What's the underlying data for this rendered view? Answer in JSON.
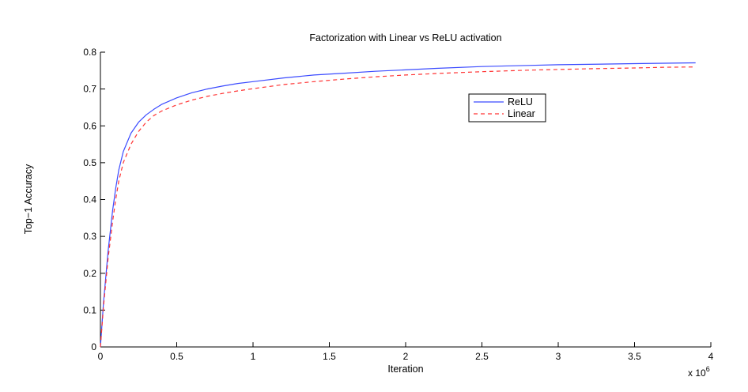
{
  "chart_data": {
    "type": "line",
    "title": "Factorization with Linear vs ReLU activation",
    "xlabel": "Iteration",
    "ylabel": "Top−1 Accuracy",
    "x_multiplier_label": "x 10",
    "x_multiplier_exponent": "6",
    "xlim": [
      0,
      4
    ],
    "ylim": [
      0,
      0.8
    ],
    "x_ticks": [
      0,
      0.5,
      1,
      1.5,
      2,
      2.5,
      3,
      3.5,
      4
    ],
    "x_tick_labels": [
      "0",
      "0.5",
      "1",
      "1.5",
      "2",
      "2.5",
      "3",
      "3.5",
      "4"
    ],
    "y_ticks": [
      0,
      0.1,
      0.2,
      0.3,
      0.4,
      0.5,
      0.6,
      0.7,
      0.8
    ],
    "y_tick_labels": [
      "0",
      "0.1",
      "0.2",
      "0.3",
      "0.4",
      "0.5",
      "0.6",
      "0.7",
      "0.8"
    ],
    "grid": false,
    "legend_position": "upper-right-inside",
    "series": [
      {
        "name": "ReLU",
        "color": "#3b4bff",
        "style": "solid",
        "x": [
          0,
          0.02,
          0.05,
          0.08,
          0.1,
          0.12,
          0.15,
          0.2,
          0.25,
          0.3,
          0.35,
          0.4,
          0.5,
          0.6,
          0.7,
          0.8,
          0.9,
          1.0,
          1.2,
          1.4,
          1.6,
          1.8,
          2.0,
          2.2,
          2.5,
          2.8,
          3.0,
          3.2,
          3.5,
          3.7,
          3.9
        ],
        "y": [
          0,
          0.12,
          0.26,
          0.37,
          0.43,
          0.48,
          0.53,
          0.58,
          0.61,
          0.63,
          0.645,
          0.658,
          0.676,
          0.69,
          0.7,
          0.708,
          0.715,
          0.72,
          0.73,
          0.738,
          0.743,
          0.748,
          0.752,
          0.756,
          0.761,
          0.764,
          0.766,
          0.767,
          0.769,
          0.77,
          0.771
        ]
      },
      {
        "name": "Linear",
        "color": "#ff3333",
        "style": "dashed",
        "x": [
          0,
          0.02,
          0.05,
          0.08,
          0.1,
          0.12,
          0.15,
          0.2,
          0.25,
          0.3,
          0.35,
          0.4,
          0.5,
          0.6,
          0.7,
          0.8,
          0.9,
          1.0,
          1.2,
          1.4,
          1.6,
          1.8,
          2.0,
          2.2,
          2.5,
          2.8,
          3.0,
          3.2,
          3.5,
          3.7,
          3.9
        ],
        "y": [
          0,
          0.11,
          0.24,
          0.34,
          0.4,
          0.45,
          0.5,
          0.55,
          0.585,
          0.61,
          0.628,
          0.64,
          0.657,
          0.67,
          0.68,
          0.688,
          0.695,
          0.701,
          0.712,
          0.72,
          0.727,
          0.733,
          0.738,
          0.742,
          0.747,
          0.751,
          0.753,
          0.755,
          0.757,
          0.759,
          0.76
        ]
      }
    ]
  }
}
